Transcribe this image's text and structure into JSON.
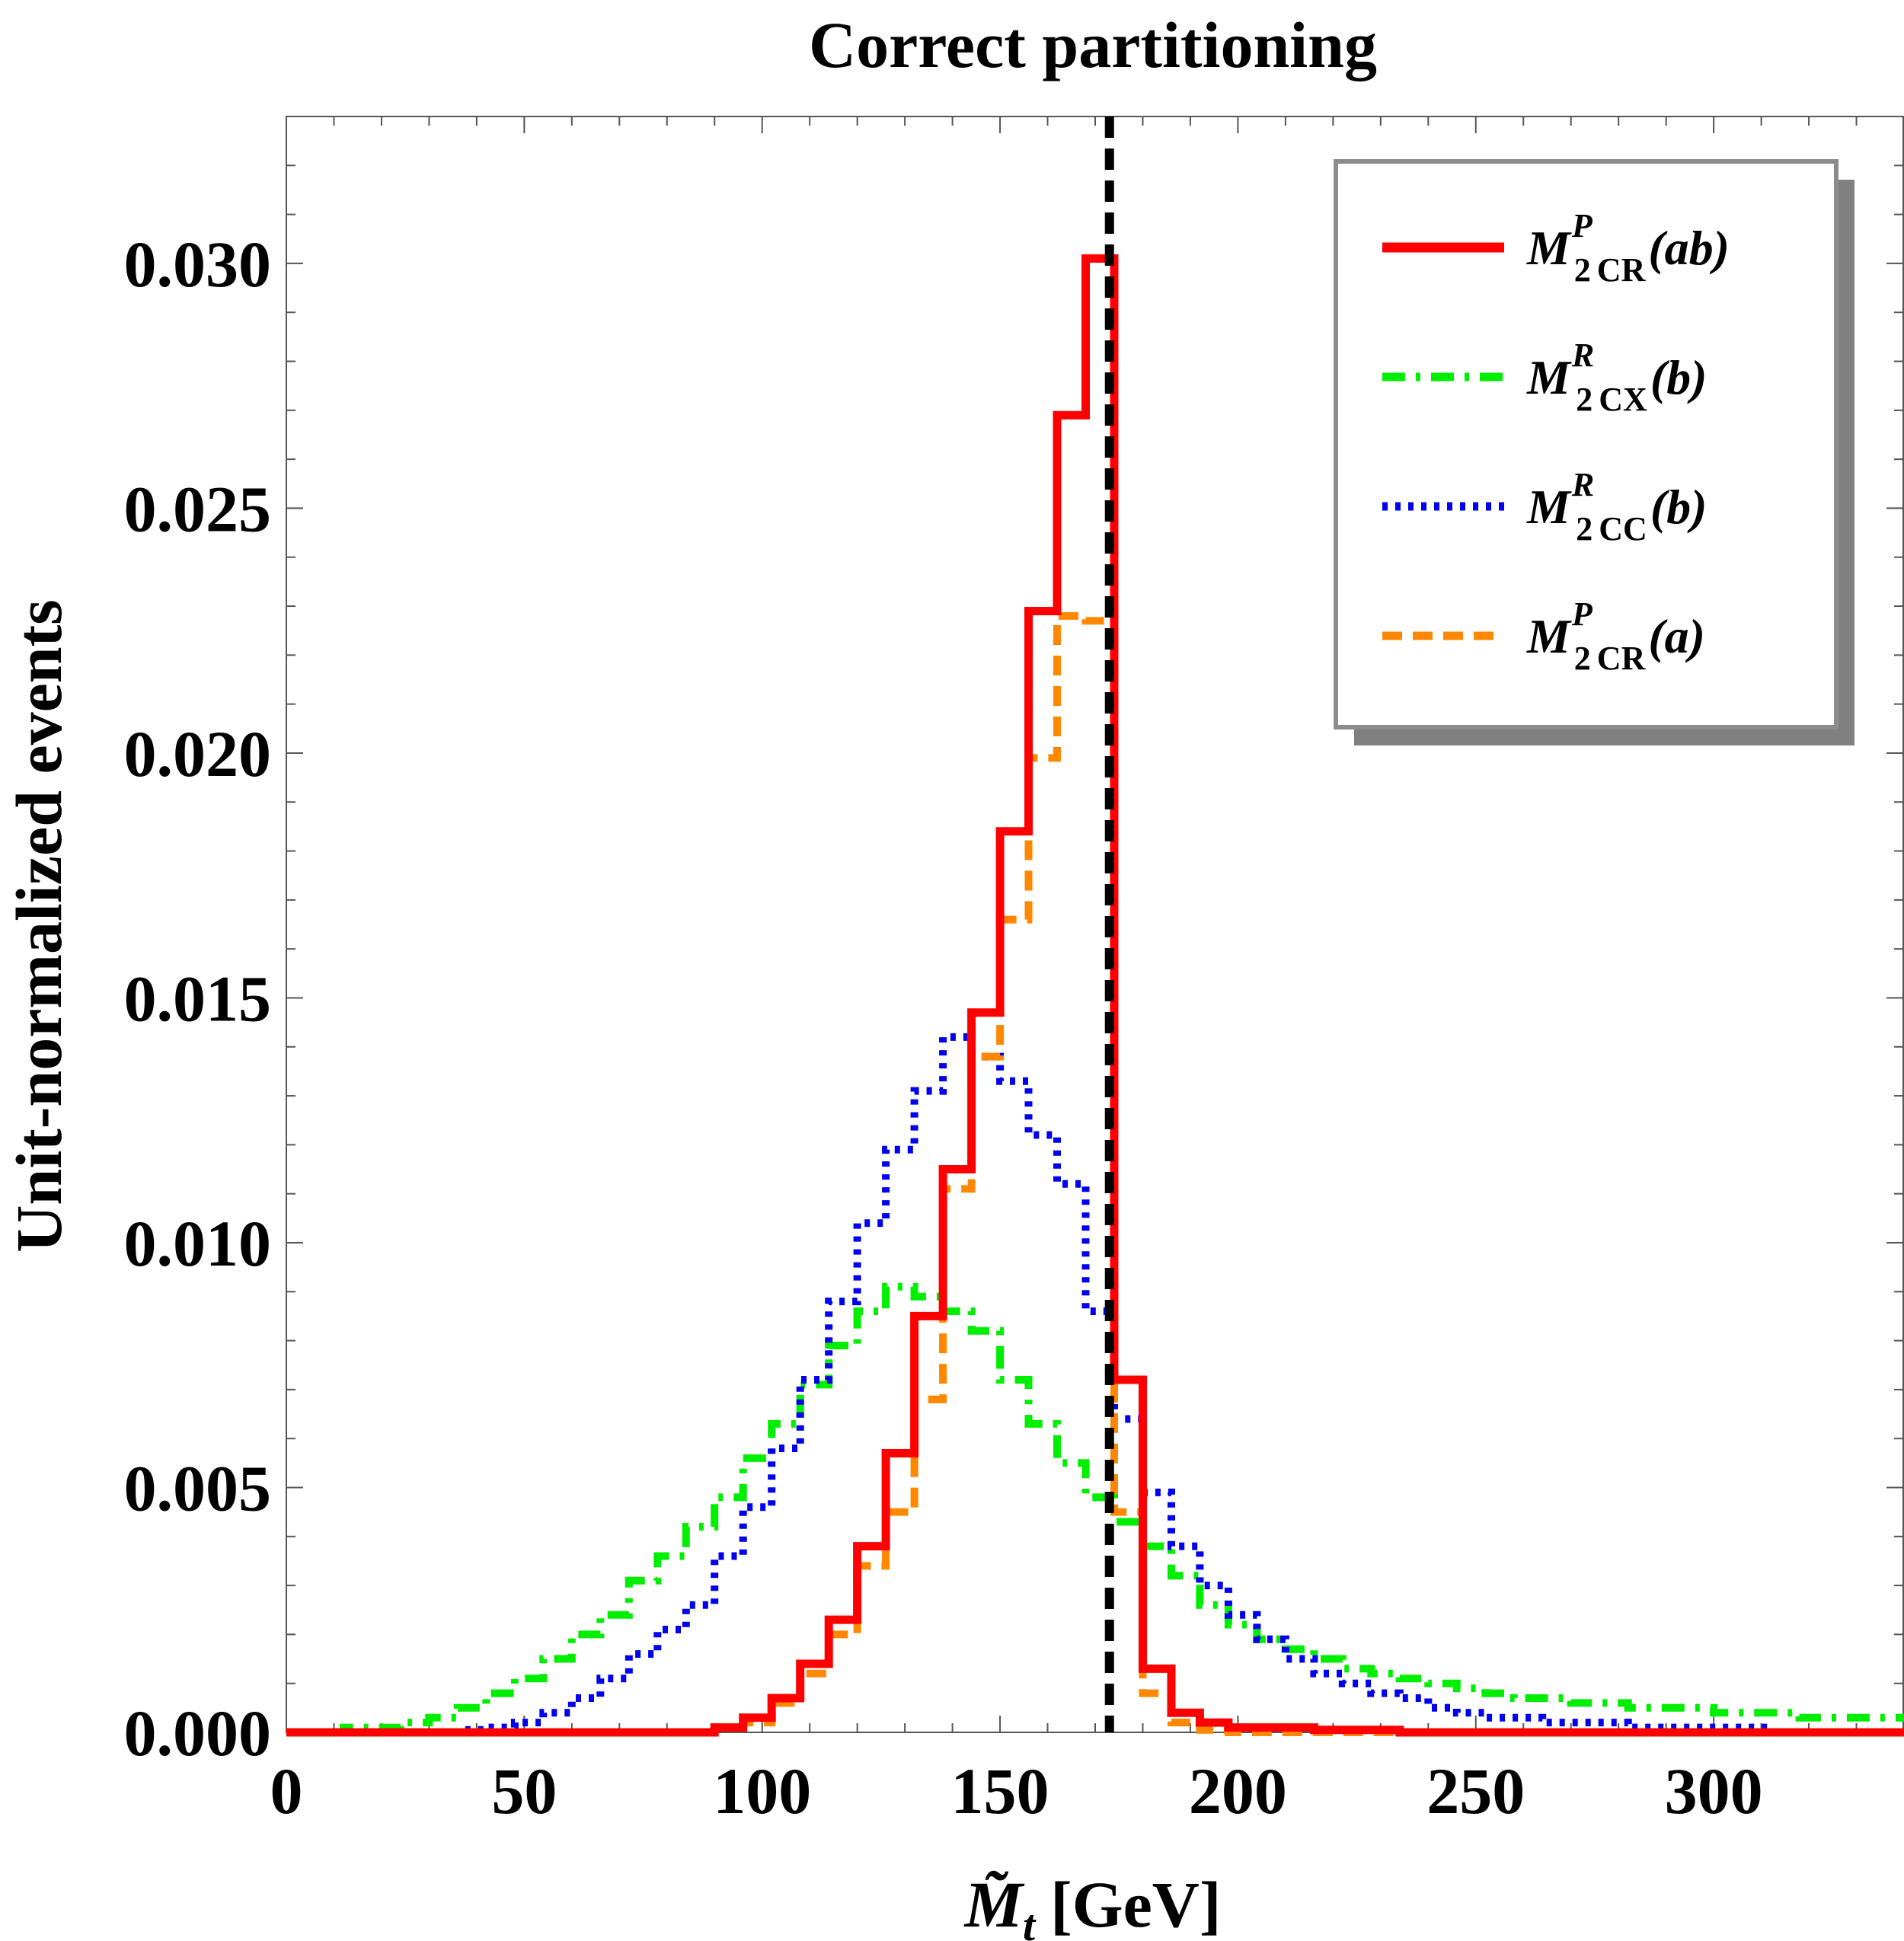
{
  "chart_data": {
    "type": "histogram-step",
    "title": "Correct partitioning",
    "xlabel": "M̃",
    "xlabel_sub": "t",
    "xlabel_unit": "[GeV]",
    "ylabel": "Unit-normalized events",
    "xlim": [
      0,
      340
    ],
    "ylim": [
      0,
      0.033
    ],
    "xticks": [
      0,
      50,
      100,
      150,
      200,
      250,
      300
    ],
    "xtick_labels": [
      "0",
      "50",
      "100",
      "150",
      "200",
      "250",
      "300"
    ],
    "yticks": [
      0.0,
      0.005,
      0.01,
      0.015,
      0.02,
      0.025,
      0.03
    ],
    "ytick_labels": [
      "0.000",
      "0.005",
      "0.010",
      "0.015",
      "0.020",
      "0.025",
      "0.030"
    ],
    "bin_edges": [
      0,
      6,
      12,
      18,
      24,
      30,
      36,
      42,
      48,
      54,
      60,
      66,
      72,
      78,
      84,
      90,
      96,
      102,
      108,
      114,
      120,
      126,
      132,
      138,
      144,
      150,
      156,
      162,
      168,
      174,
      180,
      186,
      192,
      198,
      204,
      210,
      216,
      222,
      228,
      234,
      240,
      246,
      252,
      258,
      264,
      270,
      276,
      282,
      288,
      294,
      300,
      306,
      312,
      318,
      324,
      330,
      336,
      340
    ],
    "vertical_line": {
      "x": 173,
      "color": "#000000",
      "style": "dashed"
    },
    "legend_position": "top-right",
    "series": [
      {
        "name": "M2CR^P(ab)",
        "legend": {
          "base": "M",
          "sup": "P",
          "sub_num": "2",
          "sub_txt": "CR",
          "arg": "(ab)"
        },
        "color": "#ff0000",
        "style": "solid",
        "values": [
          0,
          0,
          0,
          0,
          0,
          0,
          0,
          0,
          0,
          0,
          0,
          0,
          0,
          0,
          0,
          0.0001,
          0.0003,
          0.0007,
          0.0014,
          0.0023,
          0.0038,
          0.0057,
          0.0085,
          0.0115,
          0.0147,
          0.0184,
          0.0229,
          0.0269,
          0.0301,
          0.0072,
          0.0013,
          0.0004,
          0.0002,
          0.0001,
          0.0001,
          0.0001,
          5e-05,
          5e-05,
          5e-05,
          0,
          0,
          0,
          0,
          0,
          0,
          0,
          0,
          0,
          0,
          0,
          0,
          0,
          0,
          0,
          0,
          0,
          0
        ]
      },
      {
        "name": "M2CX^R(b)",
        "legend": {
          "base": "M",
          "sup": "R",
          "sub_num": "2",
          "sub_txt": "CX",
          "arg": "(b)"
        },
        "color": "#00ee00",
        "style": "dashdot",
        "values": [
          0,
          0,
          0.0001,
          0.0001,
          0.0002,
          0.0003,
          0.0005,
          0.0008,
          0.0011,
          0.0015,
          0.002,
          0.0024,
          0.0031,
          0.0036,
          0.0042,
          0.0048,
          0.0056,
          0.0063,
          0.0071,
          0.0079,
          0.0086,
          0.0091,
          0.0089,
          0.0086,
          0.0082,
          0.0072,
          0.0063,
          0.0055,
          0.0048,
          0.0043,
          0.0038,
          0.0032,
          0.0026,
          0.0022,
          0.0019,
          0.0017,
          0.0015,
          0.0013,
          0.0012,
          0.0011,
          0.001,
          0.0009,
          0.0008,
          0.0007,
          0.0007,
          0.0006,
          0.0006,
          0.0005,
          0.0005,
          0.0005,
          0.0004,
          0.0004,
          0.0004,
          0.0003,
          0.0003,
          0.0003,
          0.0003
        ]
      },
      {
        "name": "M2CC^R(b)",
        "legend": {
          "base": "M",
          "sup": "R",
          "sub_num": "2",
          "sub_txt": "CC",
          "arg": "(b)"
        },
        "color": "#0000ee",
        "style": "dotted",
        "values": [
          0,
          0,
          0,
          0,
          0,
          0,
          5e-05,
          0.0001,
          0.0002,
          0.0004,
          0.0007,
          0.0011,
          0.0016,
          0.0021,
          0.0026,
          0.0036,
          0.0046,
          0.0058,
          0.0072,
          0.0088,
          0.0104,
          0.0119,
          0.0131,
          0.0142,
          0.0138,
          0.0133,
          0.0122,
          0.0112,
          0.0086,
          0.0064,
          0.0049,
          0.0038,
          0.003,
          0.0024,
          0.0019,
          0.0015,
          0.0012,
          0.001,
          0.0008,
          0.0007,
          0.0005,
          0.0004,
          0.0003,
          0.0003,
          0.0002,
          0.0002,
          0.0002,
          0.0001,
          0.0001,
          0.0001,
          0.0001,
          0.0001,
          0,
          0,
          0,
          0,
          0
        ]
      },
      {
        "name": "M2CR^P(a)",
        "legend": {
          "base": "M",
          "sup": "P",
          "sub_num": "2",
          "sub_txt": "CR",
          "arg": "(a)"
        },
        "color": "#ff8800",
        "style": "dashed",
        "values": [
          0,
          0,
          0,
          0,
          0,
          0,
          0,
          0,
          0,
          0,
          0,
          0,
          0,
          0,
          0,
          0.0001,
          0.0002,
          0.0006,
          0.0012,
          0.002,
          0.0034,
          0.0045,
          0.0068,
          0.0111,
          0.0138,
          0.0166,
          0.0199,
          0.0228,
          0.0227,
          0.0045,
          0.0008,
          0.0002,
          5e-05,
          0,
          0,
          0,
          0,
          0,
          0,
          0,
          0,
          0,
          0,
          0,
          0,
          0,
          0,
          0,
          0,
          0,
          0,
          0,
          0,
          0,
          0,
          0,
          0
        ]
      }
    ]
  }
}
